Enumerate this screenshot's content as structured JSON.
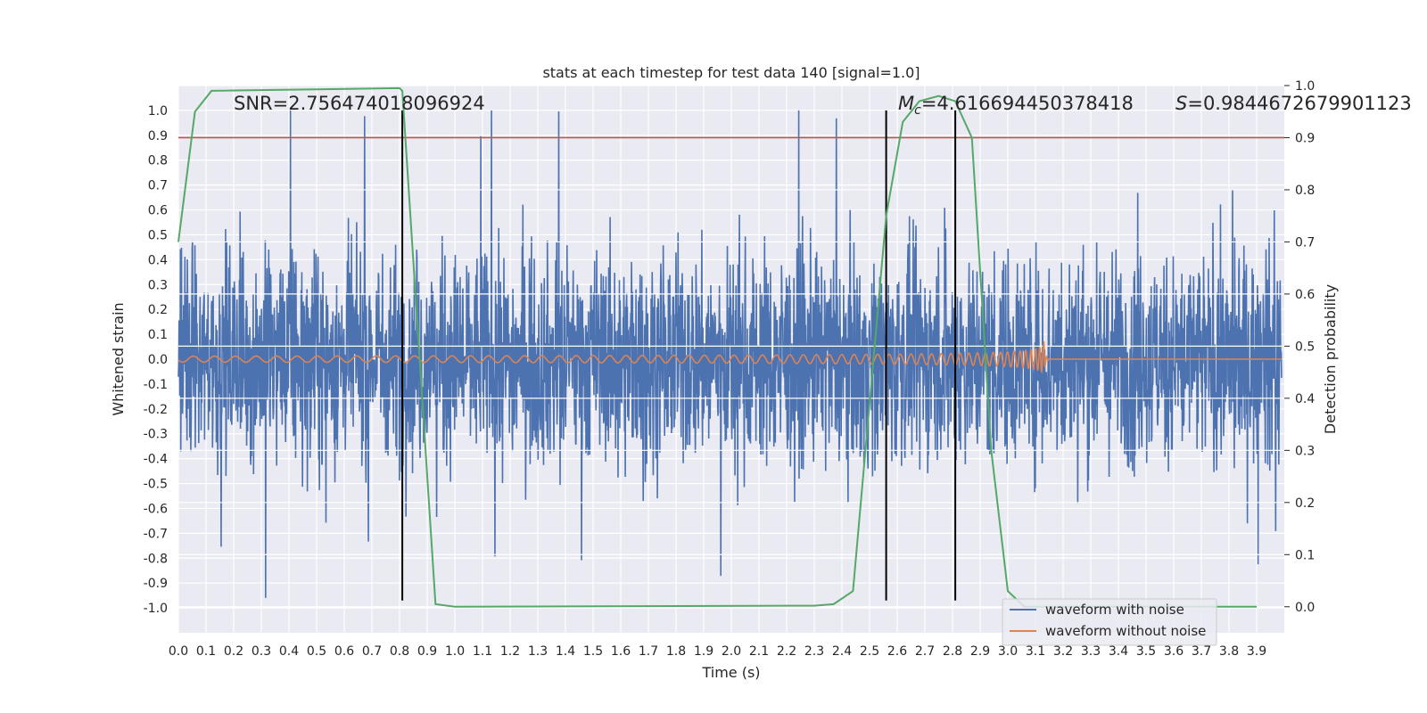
{
  "chart_data": {
    "type": "line",
    "title": "stats at each timestep for test data 140 [signal=1.0]",
    "xlabel": "Time (s)",
    "ylabel_left": "Whitened strain",
    "ylabel_right": "Detection probability",
    "xlim": [
      0.0,
      4.0
    ],
    "ylim_left": [
      -1.1,
      1.1
    ],
    "ylim_right": [
      -0.05,
      1.0
    ],
    "xticks": [
      0.0,
      0.1,
      0.2,
      0.3,
      0.4,
      0.5,
      0.6,
      0.7,
      0.8,
      0.9,
      1.0,
      1.1,
      1.2,
      1.3,
      1.4,
      1.5,
      1.6,
      1.7,
      1.8,
      1.9,
      2.0,
      2.1,
      2.2,
      2.3,
      2.4,
      2.5,
      2.6,
      2.7,
      2.8,
      2.9,
      3.0,
      3.1,
      3.2,
      3.3,
      3.4,
      3.5,
      3.6,
      3.7,
      3.8,
      3.9
    ],
    "xtick_labels": [
      "0.0",
      "0.1",
      "0.2",
      "0.3",
      "0.4",
      "0.5",
      "0.6",
      "0.7",
      "0.8",
      "0.9",
      "1.0",
      "1.1",
      "1.2",
      "1.3",
      "1.4",
      "1.5",
      "1.6",
      "1.7",
      "1.8",
      "1.9",
      "2.0",
      "2.1",
      "2.2",
      "2.3",
      "2.4",
      "2.5",
      "2.6",
      "2.7",
      "2.8",
      "2.9",
      "3.0",
      "3.1",
      "3.2",
      "3.3",
      "3.4",
      "3.5",
      "3.6",
      "3.7",
      "3.8",
      "3.9"
    ],
    "yticks_left": [
      1.0,
      0.9,
      0.8,
      0.7,
      0.6,
      0.5,
      0.4,
      0.3,
      0.2,
      0.1,
      0.0,
      -0.1,
      -0.2,
      -0.3,
      -0.4,
      -0.5,
      -0.6,
      -0.7,
      -0.8,
      -0.9,
      -1.0
    ],
    "ytick_labels_left": [
      "1.0",
      "0.9",
      "0.8",
      "0.7",
      "0.6",
      "0.5",
      "0.4",
      "0.3",
      "0.2",
      "0.1",
      "0.0",
      "-0.1",
      "-0.2",
      "-0.3",
      "-0.4",
      "-0.5",
      "-0.6",
      "-0.7",
      "-0.8",
      "-0.9",
      "-1.0"
    ],
    "yticks_right": [
      1.0,
      0.9,
      0.8,
      0.7,
      0.6,
      0.5,
      0.4,
      0.3,
      0.2,
      0.1,
      0.0
    ],
    "ytick_labels_right": [
      "1.0",
      "0.9",
      "0.8",
      "0.7",
      "0.6",
      "0.5",
      "0.4",
      "0.3",
      "0.2",
      "0.1",
      "0.0"
    ],
    "grid": true,
    "legend_position": "lower-right",
    "annotations": {
      "snr": "SNR=2.756474018096924",
      "mc_symbol": "M",
      "mc_sub": "c",
      "mc_value": "=4.616694450378418",
      "s_symbol": "S",
      "s_value": "=0.9844672679901123"
    },
    "series": [
      {
        "name": "waveform with noise",
        "color": "#4c72b0",
        "description_kind": "noise",
        "x_range": [
          0.0,
          3.99
        ],
        "amplitude_range": [
          -0.96,
          1.0
        ]
      },
      {
        "name": "waveform without noise",
        "color": "#dd8452",
        "description_kind": "chirp",
        "x_range": [
          0.0,
          3.99
        ],
        "merger_time": 3.13,
        "peak_amplitude": 0.08
      },
      {
        "color": "#55a868",
        "axis": "right",
        "x": [
          0.0,
          0.06,
          0.12,
          0.8,
          0.81,
          0.93,
          1.0,
          2.3,
          2.37,
          2.44,
          2.56,
          2.62,
          2.68,
          2.75,
          2.81,
          2.87,
          2.94,
          3.0,
          3.06,
          3.9
        ],
        "y": [
          0.7,
          0.95,
          0.99,
          0.995,
          0.99,
          0.005,
          0.0,
          0.002,
          0.005,
          0.03,
          0.75,
          0.93,
          0.97,
          0.98,
          0.97,
          0.9,
          0.3,
          0.03,
          0.0,
          0.0
        ]
      }
    ],
    "threshold": {
      "value": 0.9,
      "axis": "right",
      "color": "#c44e52"
    },
    "vlines": [
      {
        "x": 0.81,
        "ymin": -0.97,
        "ymax": 1.0,
        "color": "#000000"
      },
      {
        "x": 2.56,
        "ymin": -0.97,
        "ymax": 1.0,
        "color": "#000000"
      },
      {
        "x": 2.81,
        "ymin": -0.97,
        "ymax": 1.0,
        "color": "#000000"
      }
    ]
  },
  "colors": {
    "axes_background": "#eaeaf2",
    "grid": "#ffffff",
    "text": "#262626"
  }
}
